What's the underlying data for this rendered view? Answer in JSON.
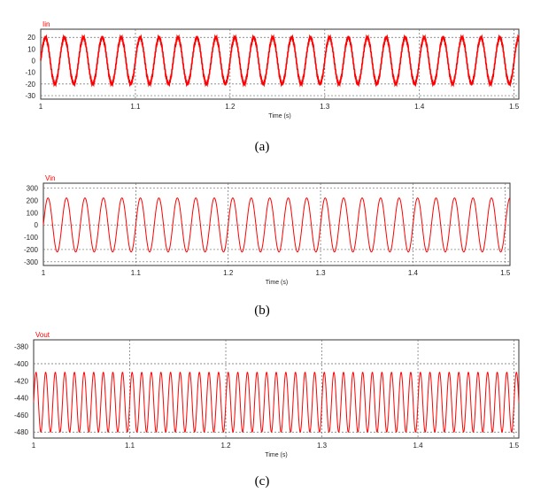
{
  "colors": {
    "trace": "#ff0000",
    "grid": "#6a6a6a",
    "frame": "#333333"
  },
  "chart_data": [
    {
      "type": "line",
      "title": "",
      "ylabel": "Iin",
      "xlabel": "Time (s)",
      "caption": "(a)",
      "xlim": [
        1.0,
        1.505
      ],
      "ylim": [
        -33,
        27
      ],
      "xticks": [
        {
          "v": 1.0,
          "label": "1"
        },
        {
          "v": 1.1,
          "label": "1.1"
        },
        {
          "v": 1.2,
          "label": "1.2"
        },
        {
          "v": 1.3,
          "label": "1.3"
        },
        {
          "v": 1.4,
          "label": "1.4"
        },
        {
          "v": 1.5,
          "label": "1.5"
        }
      ],
      "yticks": [
        {
          "v": 20,
          "label": "20"
        },
        {
          "v": 10,
          "label": "10"
        },
        {
          "v": 0,
          "label": "0"
        },
        {
          "v": -10,
          "label": "-10"
        },
        {
          "v": -20,
          "label": "-20"
        },
        {
          "v": -30,
          "label": "-30"
        }
      ],
      "hgrid": [
        20,
        -20,
        -30
      ],
      "series": [
        {
          "waveform": "sine",
          "amplitude": 20,
          "offset": 0,
          "frequency_hz": 50,
          "ripple": 1.2
        }
      ]
    },
    {
      "type": "line",
      "title": "",
      "ylabel": "Vin",
      "xlabel": "Time (s)",
      "caption": "(b)",
      "xlim": [
        1.0,
        1.505
      ],
      "ylim": [
        -330,
        340
      ],
      "xticks": [
        {
          "v": 1.0,
          "label": "1"
        },
        {
          "v": 1.1,
          "label": "1.1"
        },
        {
          "v": 1.2,
          "label": "1.2"
        },
        {
          "v": 1.3,
          "label": "1.3"
        },
        {
          "v": 1.4,
          "label": "1.4"
        },
        {
          "v": 1.5,
          "label": "1.5"
        }
      ],
      "yticks": [
        {
          "v": 300,
          "label": "300"
        },
        {
          "v": 200,
          "label": "200"
        },
        {
          "v": 100,
          "label": "100"
        },
        {
          "v": 0,
          "label": "0"
        },
        {
          "v": -100,
          "label": "-100"
        },
        {
          "v": -200,
          "label": "-200"
        },
        {
          "v": -300,
          "label": "-300"
        }
      ],
      "hgrid": [
        300,
        0,
        -200,
        -300
      ],
      "series": [
        {
          "waveform": "sine",
          "amplitude": 220,
          "offset": 0,
          "frequency_hz": 50,
          "ripple": 0
        }
      ]
    },
    {
      "type": "line",
      "title": "",
      "ylabel": "Vout",
      "xlabel": "Time (s)",
      "caption": "(c)",
      "xlim": [
        1.0,
        1.505
      ],
      "ylim": [
        -487,
        -372
      ],
      "xticks": [
        {
          "v": 1.0,
          "label": "1"
        },
        {
          "v": 1.1,
          "label": "1.1"
        },
        {
          "v": 1.2,
          "label": "1.2"
        },
        {
          "v": 1.3,
          "label": "1.3"
        },
        {
          "v": 1.4,
          "label": "1.4"
        },
        {
          "v": 1.5,
          "label": "1.5"
        }
      ],
      "yticks": [
        {
          "v": -380,
          "label": "-380"
        },
        {
          "v": -400,
          "label": "-400"
        },
        {
          "v": -420,
          "label": "-420"
        },
        {
          "v": -440,
          "label": "-440"
        },
        {
          "v": -460,
          "label": "-460"
        },
        {
          "v": -480,
          "label": "-480"
        }
      ],
      "hgrid": [
        -400,
        -480
      ],
      "series": [
        {
          "waveform": "sine",
          "amplitude": 35,
          "offset": -445,
          "frequency_hz": 100,
          "ripple": 0
        }
      ]
    }
  ]
}
